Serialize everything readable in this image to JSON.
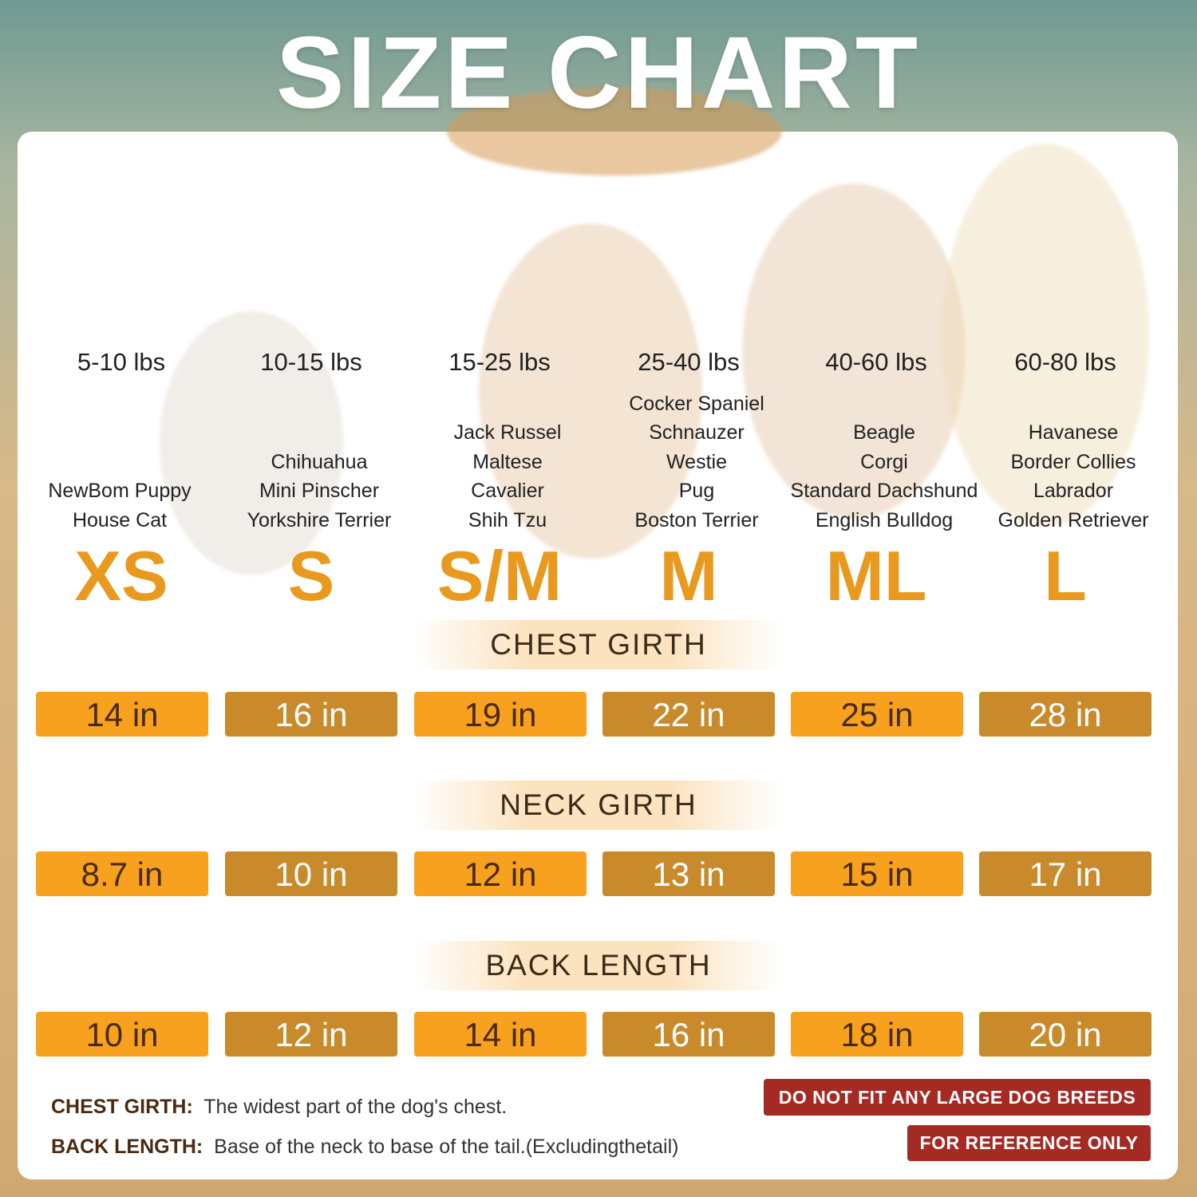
{
  "title": "SIZE CHART",
  "sizes": [
    {
      "weight": "5-10 lbs",
      "breeds": [
        "NewBom Puppy",
        "House Cat"
      ],
      "size": "XS"
    },
    {
      "weight": "10-15 lbs",
      "breeds": [
        "Chihuahua",
        "Mini Pinscher",
        "Yorkshire Terrier"
      ],
      "size": "S"
    },
    {
      "weight": "15-25 lbs",
      "breeds": [
        "Jack Russel",
        "Maltese",
        "Cavalier",
        "Shih Tzu"
      ],
      "size": "S/M"
    },
    {
      "weight": "25-40 lbs",
      "breeds": [
        "Cocker Spaniel",
        "Schnauzer",
        "Westie",
        "Pug",
        "Boston Terrier"
      ],
      "size": "M"
    },
    {
      "weight": "40-60 lbs",
      "breeds": [
        "Beagle",
        "Corgi",
        "Standard Dachshund",
        "English Bulldog"
      ],
      "size": "ML"
    },
    {
      "weight": "60-80 lbs",
      "breeds": [
        "Havanese",
        "Border Collies",
        "Labrador",
        "Golden Retriever"
      ],
      "size": "L"
    }
  ],
  "sections": [
    {
      "title": "CHEST GIRTH",
      "values": [
        "14 in",
        "16 in",
        "19 in",
        "22 in",
        "25 in",
        "28 in"
      ]
    },
    {
      "title": "NECK GIRTH",
      "values": [
        "8.7 in",
        "10 in",
        "12 in",
        "13 in",
        "15 in",
        "17 in"
      ]
    },
    {
      "title": "BACK LENGTH",
      "values": [
        "10 in",
        "12 in",
        "14 in",
        "16 in",
        "18 in",
        "20 in"
      ]
    }
  ],
  "notes": [
    {
      "term": "CHEST GIRTH:",
      "text": "The widest part of the dog's chest."
    },
    {
      "term": "BACK LENGTH:",
      "text": "Base of the neck to base of the tail.(Excludingthetail)"
    }
  ],
  "badges": [
    "DO NOT FIT ANY LARGE DOG BREEDS",
    "FOR REFERENCE ONLY"
  ]
}
